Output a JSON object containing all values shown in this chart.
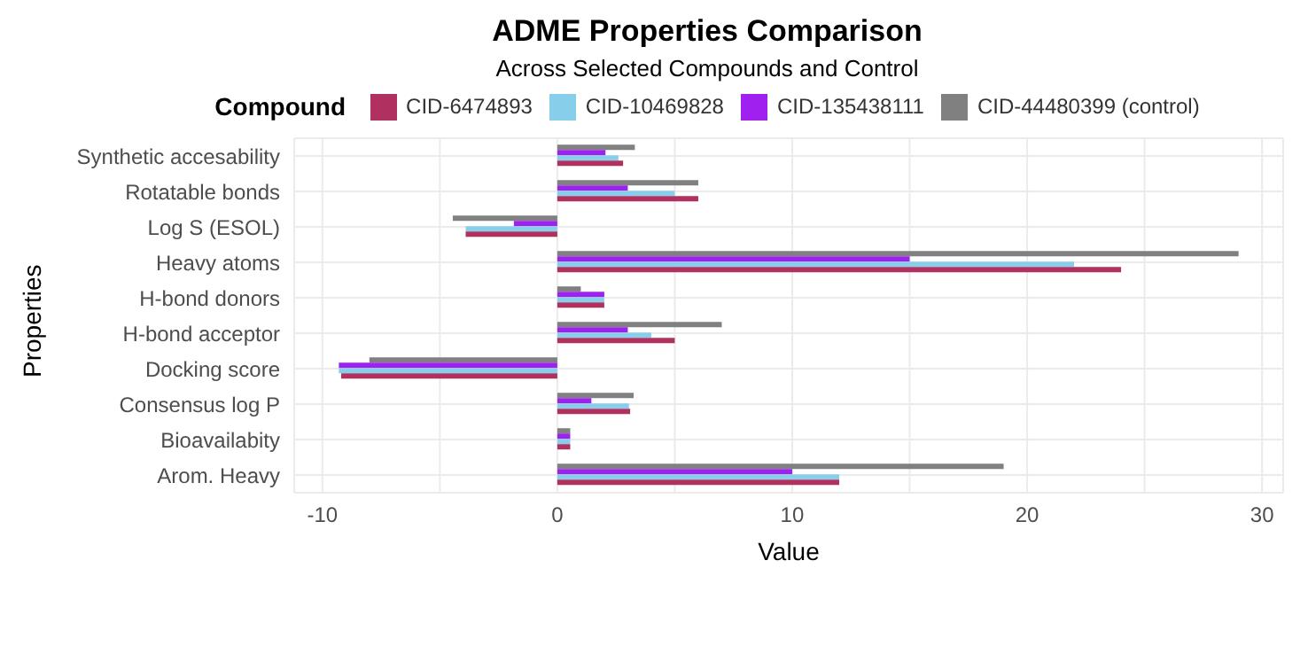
{
  "chart_data": {
    "type": "bar",
    "orientation": "horizontal",
    "title": "ADME Properties Comparison",
    "subtitle": "Across Selected Compounds and Control",
    "xlabel": "Value",
    "ylabel": "Properties",
    "legend_title": "Compound",
    "categories": [
      "Synthetic accesability",
      "Rotatable bonds",
      "Log S (ESOL)",
      "Heavy atoms",
      "H-bond donors",
      "H-bond acceptor",
      "Docking score",
      "Consensus log P",
      "Bioavailabity",
      "Arom. Heavy"
    ],
    "series": [
      {
        "name": "CID-6474893",
        "color": "#b03060",
        "values": [
          2.8,
          6,
          -3.9,
          24,
          2,
          5,
          -9.2,
          3.1,
          0.55,
          12
        ]
      },
      {
        "name": "CID-10469828",
        "color": "#87ceeb",
        "values": [
          2.6,
          5,
          -3.9,
          22,
          2,
          4,
          -9.3,
          3.05,
          0.55,
          12
        ]
      },
      {
        "name": "CID-135438111",
        "color": "#a020f0",
        "values": [
          2.05,
          3,
          -1.85,
          15,
          2,
          3,
          -9.3,
          1.45,
          0.55,
          10
        ]
      },
      {
        "name": "CID-44480399 (control)",
        "color": "#808080",
        "values": [
          3.3,
          6,
          -4.45,
          29,
          1,
          7,
          -8,
          3.25,
          0.55,
          19
        ]
      }
    ],
    "xlim": [
      -11.2,
      30.9
    ],
    "xticks": [
      -10,
      {
        "value": -5,
        "label": null
      },
      0,
      {
        "value": 5,
        "label": null
      },
      10,
      {
        "value": 15,
        "label": null
      },
      20,
      {
        "value": 25,
        "label": null
      },
      30
    ],
    "grid": true,
    "legend": "top"
  }
}
